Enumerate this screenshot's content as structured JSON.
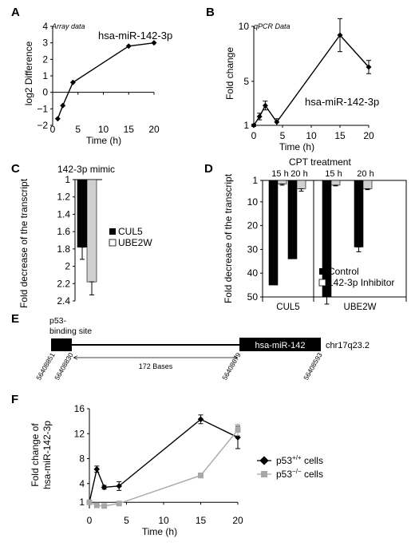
{
  "panels": {
    "A": "A",
    "B": "B",
    "C": "C",
    "D": "D",
    "E": "E",
    "F": "F"
  },
  "chart_data": [
    {
      "panel": "A",
      "type": "line",
      "annotation": "Array data",
      "series_label": "hsa-miR-142-3p",
      "xlabel": "Time (h)",
      "ylabel": "log2 Difference",
      "xlim": [
        0,
        20
      ],
      "ylim": [
        -2,
        4
      ],
      "xticks": [
        "0",
        "5",
        "10",
        "15",
        "20"
      ],
      "yticks": [
        "−2",
        "−1",
        "0",
        "1",
        "2",
        "3",
        "4"
      ],
      "series": [
        {
          "x": [
            1,
            2,
            4,
            15,
            20
          ],
          "y": [
            -1.6,
            -0.8,
            0.6,
            2.8,
            3.0
          ]
        }
      ]
    },
    {
      "panel": "B",
      "type": "line",
      "annotation": "qPCR Data",
      "series_label": "hsa-miR-142-3p",
      "xlabel": "Time (h)",
      "ylabel": "Fold change",
      "xlim": [
        0,
        20
      ],
      "ylim": [
        1,
        10
      ],
      "xticks": [
        "0",
        "5",
        "10",
        "15",
        "20"
      ],
      "yticks": [
        "1",
        "5",
        "10"
      ],
      "series": [
        {
          "x": [
            0,
            1,
            2,
            4,
            15,
            20
          ],
          "y": [
            1.0,
            1.8,
            2.8,
            1.3,
            9.2,
            6.3
          ],
          "err": [
            0.1,
            0.3,
            0.4,
            0.3,
            1.5,
            0.6
          ]
        }
      ]
    },
    {
      "panel": "C",
      "type": "bar",
      "title": "142-3p mimic",
      "ylabel": "Fold decrease of the transcript",
      "ylim": [
        1,
        2.4
      ],
      "yticks": [
        "1",
        "1.2",
        "1.4",
        "1.6",
        "1.8",
        "2",
        "2.2",
        "2.4"
      ],
      "series": [
        {
          "name": "CUL5",
          "values": [
            1.78
          ],
          "err": [
            0.14
          ],
          "color": "#000000"
        },
        {
          "name": "UBE2W",
          "values": [
            2.18
          ],
          "err": [
            0.15
          ],
          "color": "#d0d0d0"
        }
      ]
    },
    {
      "panel": "D",
      "type": "bar",
      "title": "CPT treatment",
      "ylabel": "Fold decrease of the transcript",
      "ylim": [
        1,
        50
      ],
      "yticks": [
        "1",
        "10",
        "20",
        "30",
        "40",
        "50"
      ],
      "groups": [
        "CUL5",
        "UBE2W"
      ],
      "subgroups": [
        "15 h",
        "20 h",
        "15 h",
        "20 h"
      ],
      "series": [
        {
          "name": "Control",
          "values": [
            45,
            34,
            50,
            29
          ],
          "err": [
            0,
            0,
            3,
            2
          ],
          "color": "#000000"
        },
        {
          "name": "142-3p Inhibitor",
          "values": [
            2.5,
            4.5,
            3,
            4.5
          ],
          "err": [
            0.5,
            1,
            0.3,
            0.4
          ],
          "color": "#d0d0d0"
        }
      ]
    },
    {
      "panel": "F",
      "type": "line",
      "xlabel": "Time (h)",
      "ylabel_line1": "Fold change of",
      "ylabel_line2": "hsa-miR-142-3p",
      "xlim": [
        0,
        20
      ],
      "ylim": [
        0,
        16
      ],
      "xticks": [
        "0",
        "5",
        "10",
        "15",
        "20"
      ],
      "yticks": [
        "1",
        "4",
        "8",
        "12",
        "16"
      ],
      "ytick_values": [
        1,
        4,
        8,
        12,
        16
      ],
      "series": [
        {
          "name_main": "p53",
          "name_sup": "+/+",
          "name_rest": " cells",
          "color": "#000000",
          "x": [
            0,
            1,
            2,
            4,
            15,
            20
          ],
          "y": [
            1.0,
            6.3,
            3.4,
            3.6,
            14.3,
            11.4
          ],
          "err": [
            0.2,
            0.5,
            0.3,
            0.7,
            0.7,
            1.8
          ]
        },
        {
          "name_main": "p53",
          "name_sup": "−/−",
          "name_rest": " cells",
          "color": "#a8a8a8",
          "x": [
            0,
            1,
            2,
            4,
            15,
            20
          ],
          "y": [
            1.0,
            0.5,
            0.4,
            0.8,
            5.3,
            12.6
          ],
          "err": [
            0.1,
            0.2,
            0.2,
            0.3,
            0.4,
            0.9
          ]
        }
      ]
    }
  ],
  "diagram": {
    "binding_site": [
      "p53-",
      "binding site"
    ],
    "gene_label": "hsa-miR-142",
    "chromosome": "chr17q23.2",
    "distance": "172 Bases",
    "coords": [
      "56408851",
      "56408830",
      "56408679",
      "56408593"
    ]
  }
}
